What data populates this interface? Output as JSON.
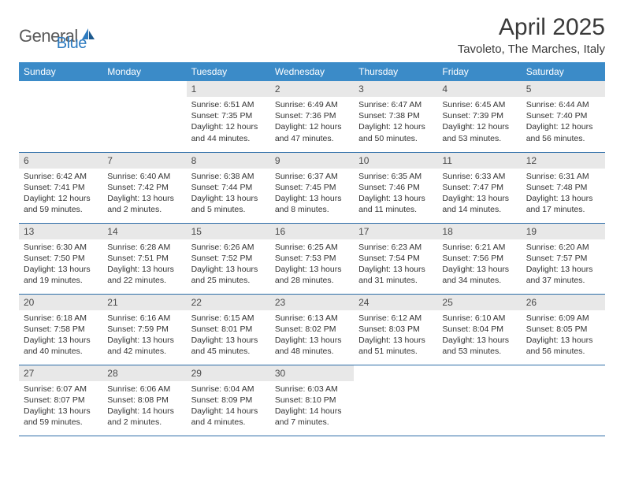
{
  "logo": {
    "part1": "General",
    "part2": "Blue"
  },
  "title": "April 2025",
  "location": "Tavoleto, The Marches, Italy",
  "colors": {
    "header_bg": "#3b8bc8",
    "header_text": "#ffffff",
    "daynum_bg": "#e8e8e8",
    "row_border": "#2d6da8",
    "logo_gray": "#5a5a5a",
    "logo_blue": "#2d7bc0"
  },
  "weekdays": [
    "Sunday",
    "Monday",
    "Tuesday",
    "Wednesday",
    "Thursday",
    "Friday",
    "Saturday"
  ],
  "weeks": [
    [
      null,
      null,
      {
        "n": "1",
        "sr": "6:51 AM",
        "ss": "7:35 PM",
        "dl": "12 hours and 44 minutes."
      },
      {
        "n": "2",
        "sr": "6:49 AM",
        "ss": "7:36 PM",
        "dl": "12 hours and 47 minutes."
      },
      {
        "n": "3",
        "sr": "6:47 AM",
        "ss": "7:38 PM",
        "dl": "12 hours and 50 minutes."
      },
      {
        "n": "4",
        "sr": "6:45 AM",
        "ss": "7:39 PM",
        "dl": "12 hours and 53 minutes."
      },
      {
        "n": "5",
        "sr": "6:44 AM",
        "ss": "7:40 PM",
        "dl": "12 hours and 56 minutes."
      }
    ],
    [
      {
        "n": "6",
        "sr": "6:42 AM",
        "ss": "7:41 PM",
        "dl": "12 hours and 59 minutes."
      },
      {
        "n": "7",
        "sr": "6:40 AM",
        "ss": "7:42 PM",
        "dl": "13 hours and 2 minutes."
      },
      {
        "n": "8",
        "sr": "6:38 AM",
        "ss": "7:44 PM",
        "dl": "13 hours and 5 minutes."
      },
      {
        "n": "9",
        "sr": "6:37 AM",
        "ss": "7:45 PM",
        "dl": "13 hours and 8 minutes."
      },
      {
        "n": "10",
        "sr": "6:35 AM",
        "ss": "7:46 PM",
        "dl": "13 hours and 11 minutes."
      },
      {
        "n": "11",
        "sr": "6:33 AM",
        "ss": "7:47 PM",
        "dl": "13 hours and 14 minutes."
      },
      {
        "n": "12",
        "sr": "6:31 AM",
        "ss": "7:48 PM",
        "dl": "13 hours and 17 minutes."
      }
    ],
    [
      {
        "n": "13",
        "sr": "6:30 AM",
        "ss": "7:50 PM",
        "dl": "13 hours and 19 minutes."
      },
      {
        "n": "14",
        "sr": "6:28 AM",
        "ss": "7:51 PM",
        "dl": "13 hours and 22 minutes."
      },
      {
        "n": "15",
        "sr": "6:26 AM",
        "ss": "7:52 PM",
        "dl": "13 hours and 25 minutes."
      },
      {
        "n": "16",
        "sr": "6:25 AM",
        "ss": "7:53 PM",
        "dl": "13 hours and 28 minutes."
      },
      {
        "n": "17",
        "sr": "6:23 AM",
        "ss": "7:54 PM",
        "dl": "13 hours and 31 minutes."
      },
      {
        "n": "18",
        "sr": "6:21 AM",
        "ss": "7:56 PM",
        "dl": "13 hours and 34 minutes."
      },
      {
        "n": "19",
        "sr": "6:20 AM",
        "ss": "7:57 PM",
        "dl": "13 hours and 37 minutes."
      }
    ],
    [
      {
        "n": "20",
        "sr": "6:18 AM",
        "ss": "7:58 PM",
        "dl": "13 hours and 40 minutes."
      },
      {
        "n": "21",
        "sr": "6:16 AM",
        "ss": "7:59 PM",
        "dl": "13 hours and 42 minutes."
      },
      {
        "n": "22",
        "sr": "6:15 AM",
        "ss": "8:01 PM",
        "dl": "13 hours and 45 minutes."
      },
      {
        "n": "23",
        "sr": "6:13 AM",
        "ss": "8:02 PM",
        "dl": "13 hours and 48 minutes."
      },
      {
        "n": "24",
        "sr": "6:12 AM",
        "ss": "8:03 PM",
        "dl": "13 hours and 51 minutes."
      },
      {
        "n": "25",
        "sr": "6:10 AM",
        "ss": "8:04 PM",
        "dl": "13 hours and 53 minutes."
      },
      {
        "n": "26",
        "sr": "6:09 AM",
        "ss": "8:05 PM",
        "dl": "13 hours and 56 minutes."
      }
    ],
    [
      {
        "n": "27",
        "sr": "6:07 AM",
        "ss": "8:07 PM",
        "dl": "13 hours and 59 minutes."
      },
      {
        "n": "28",
        "sr": "6:06 AM",
        "ss": "8:08 PM",
        "dl": "14 hours and 2 minutes."
      },
      {
        "n": "29",
        "sr": "6:04 AM",
        "ss": "8:09 PM",
        "dl": "14 hours and 4 minutes."
      },
      {
        "n": "30",
        "sr": "6:03 AM",
        "ss": "8:10 PM",
        "dl": "14 hours and 7 minutes."
      },
      null,
      null,
      null
    ]
  ],
  "labels": {
    "sunrise": "Sunrise:",
    "sunset": "Sunset:",
    "daylight": "Daylight:"
  }
}
